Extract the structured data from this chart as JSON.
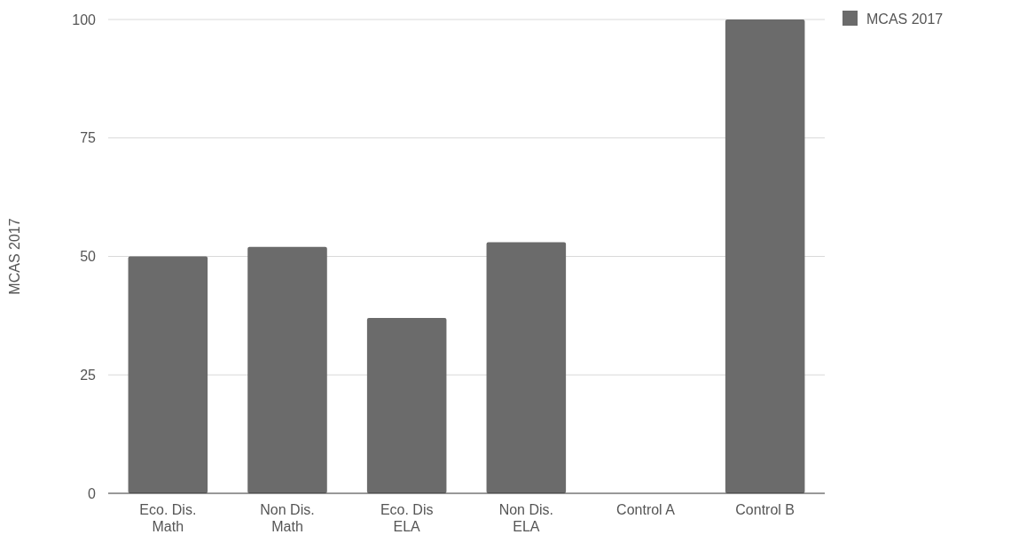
{
  "chart_data": {
    "type": "bar",
    "ylabel": "MCAS 2017",
    "categories": [
      "Eco. Dis. Math",
      "Non Dis. Math",
      "Eco. Dis ELA",
      "Non Dis. ELA",
      "Control A",
      "Control B"
    ],
    "series": [
      {
        "name": "MCAS 2017",
        "color": "#6b6b6b",
        "values": [
          50,
          52,
          37,
          53,
          0,
          100
        ]
      }
    ],
    "ylim": [
      0,
      100
    ],
    "yticks": [
      0,
      25,
      50,
      75,
      100
    ],
    "grid": "y",
    "legend": "top right"
  }
}
